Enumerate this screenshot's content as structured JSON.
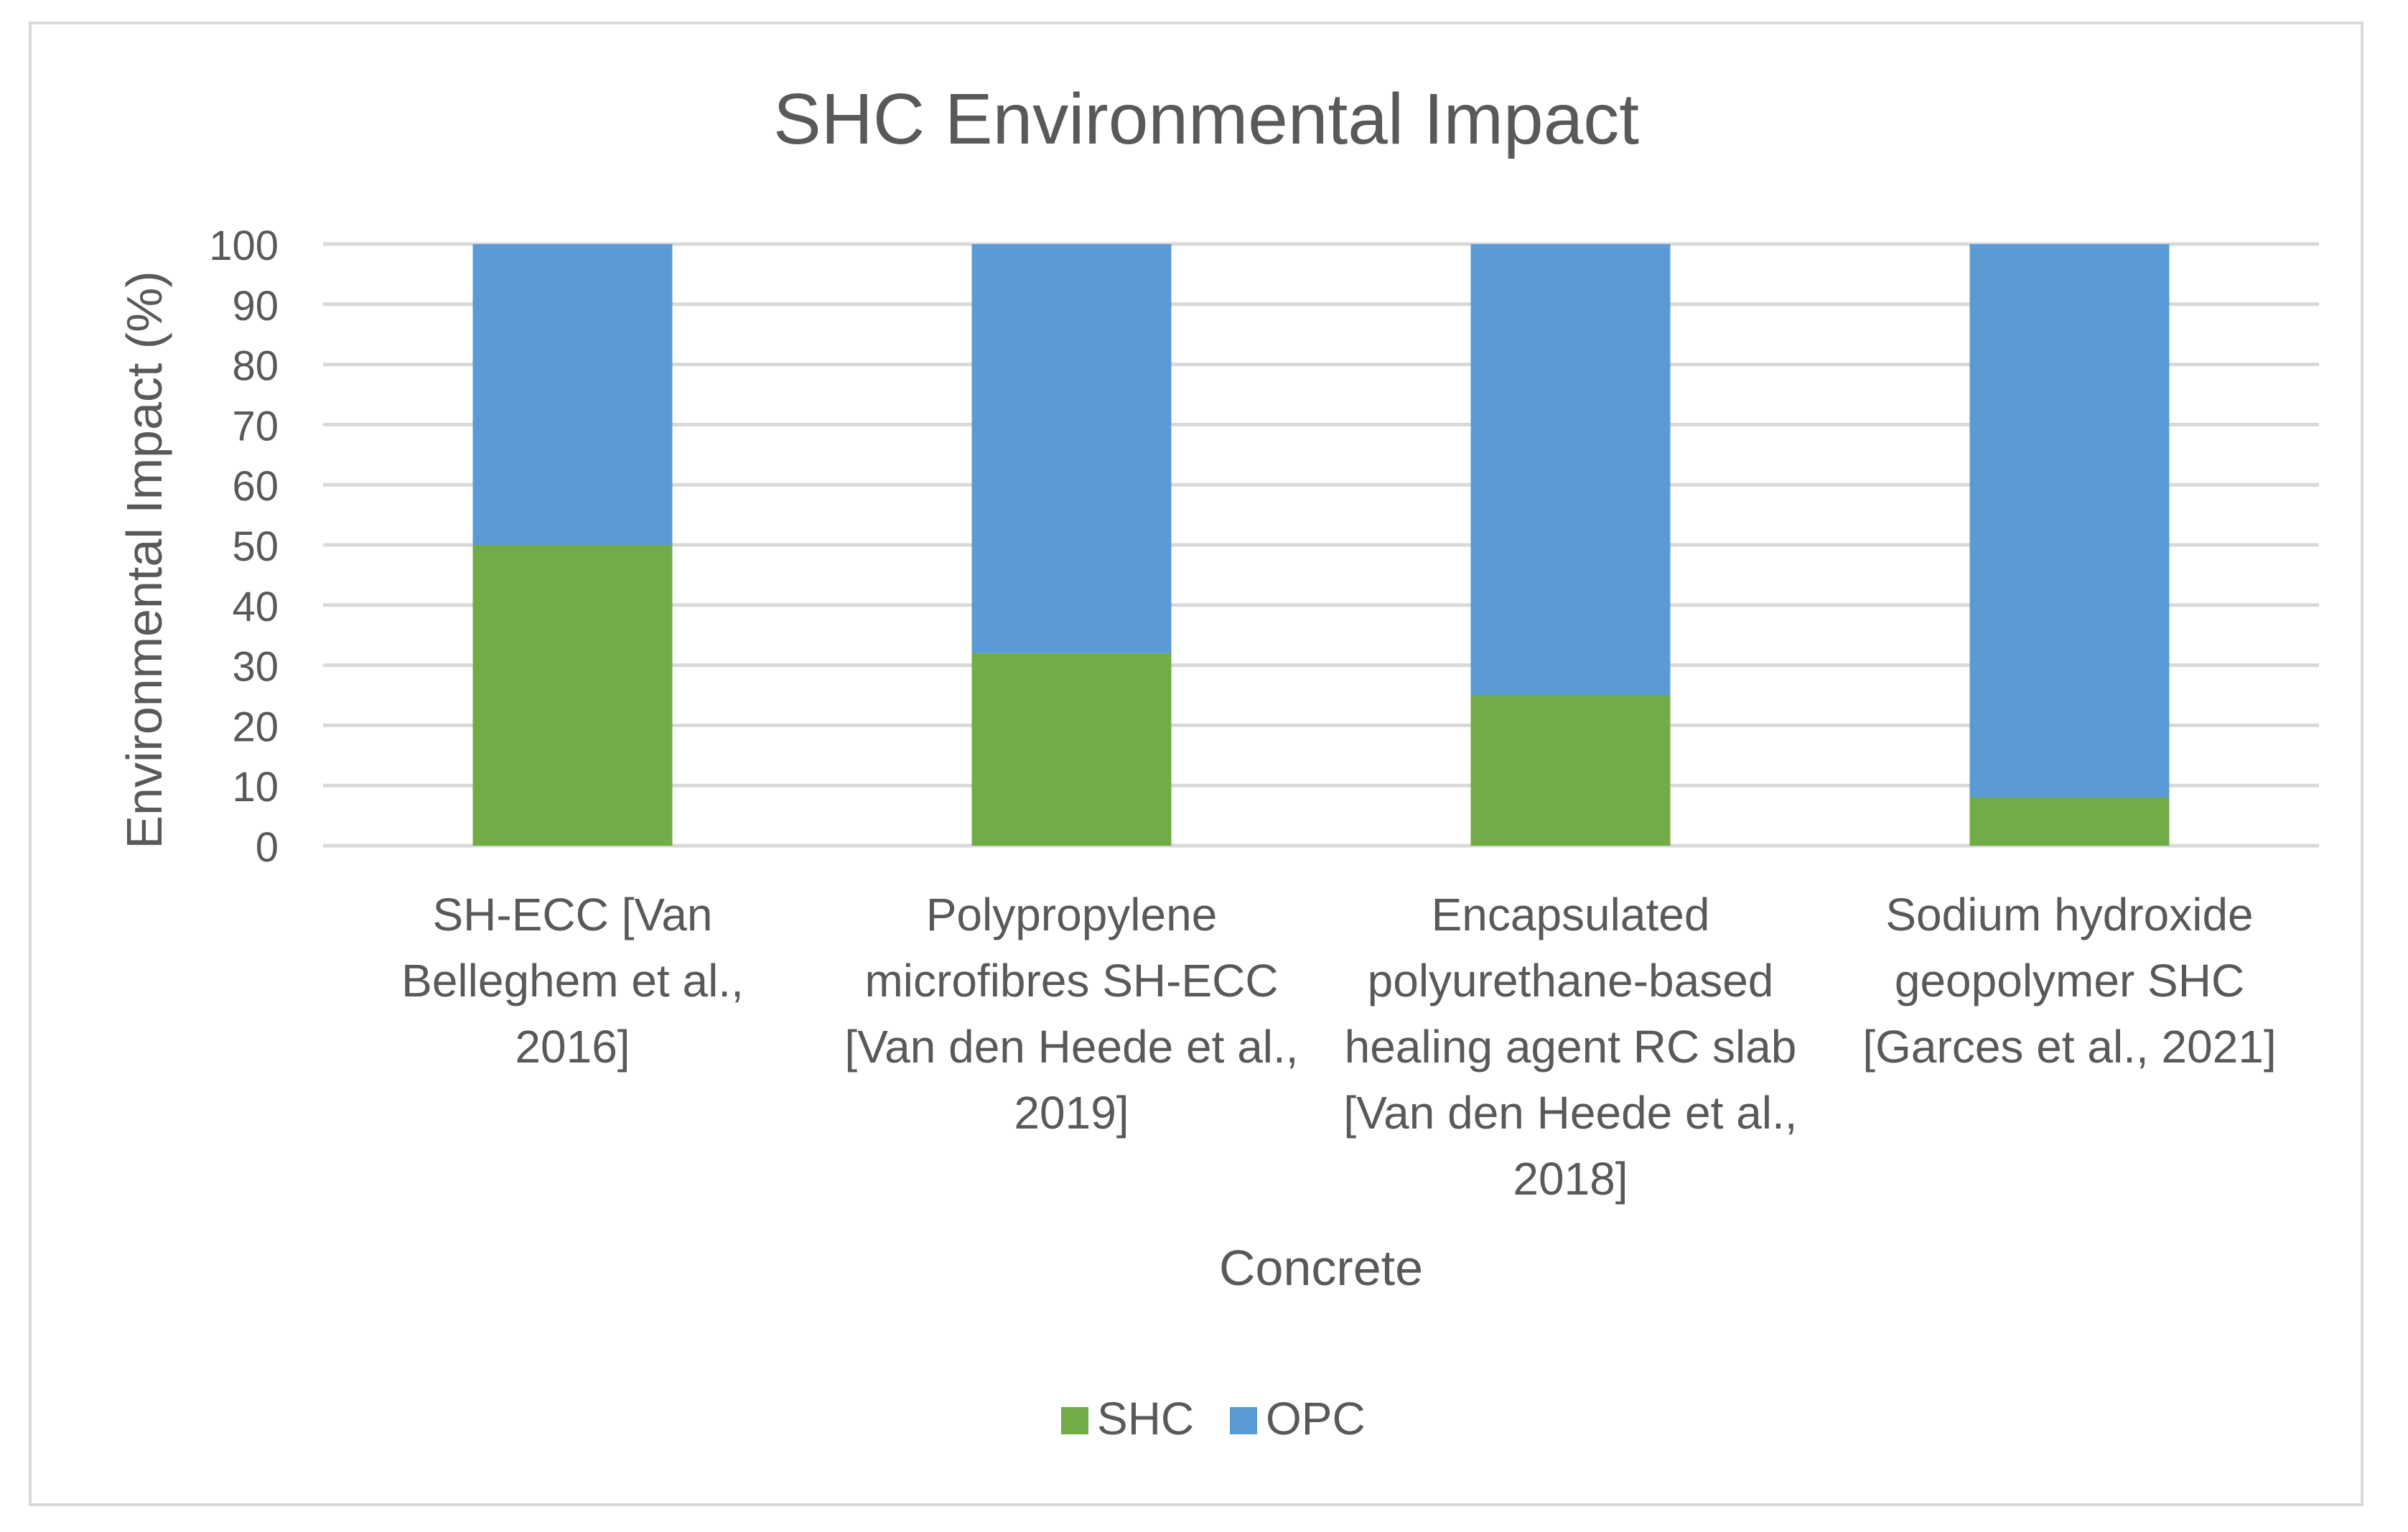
{
  "chart_data": {
    "type": "bar",
    "stacked": true,
    "title": "SHC Environmental Impact",
    "xlabel": "Concrete",
    "ylabel": "Environmental Impact (%)",
    "ylim": [
      0,
      100
    ],
    "yticks": [
      0,
      10,
      20,
      30,
      40,
      50,
      60,
      70,
      80,
      90,
      100
    ],
    "grid": true,
    "legend_position": "bottom",
    "categories": [
      [
        "SH-ECC [Van",
        "Belleghem et al.,",
        "2016]"
      ],
      [
        "Polypropylene",
        "microfibres SH-ECC",
        "[Van den Heede et al.,",
        "2019]"
      ],
      [
        "Encapsulated",
        "polyurethane-based",
        "healing agent RC slab",
        "[Van den Heede et al.,",
        "2018]"
      ],
      [
        "Sodium hydroxide",
        "geopolymer SHC",
        "[Garces et al., 2021]"
      ]
    ],
    "series": [
      {
        "name": "SHC",
        "color": "#70ad47",
        "values": [
          50,
          32,
          25,
          8
        ]
      },
      {
        "name": "OPC",
        "color": "#5b9bd5",
        "values": [
          50,
          68,
          75,
          92
        ]
      }
    ]
  }
}
